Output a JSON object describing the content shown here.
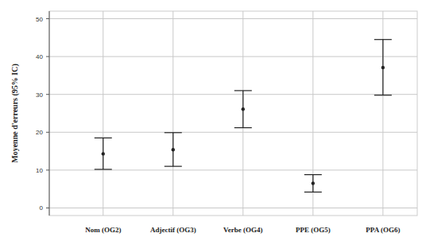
{
  "chart_data": {
    "type": "errorbar",
    "y_label": "Moyenne d'erreurs (95% IC)",
    "categories": [
      "Nom (OG2)",
      "Adjectif (OG3)",
      "Verbe (OG4)",
      "PPE (OG5)",
      "PPA (OG6)"
    ],
    "values": [
      14.3,
      15.4,
      26.1,
      6.5,
      37.1
    ],
    "ci_low": [
      10.2,
      11.0,
      21.2,
      4.2,
      29.8
    ],
    "ci_high": [
      18.5,
      19.9,
      31.0,
      8.8,
      44.5
    ],
    "color": "#222222",
    "ylim": [
      -2,
      52
    ],
    "yticks": [
      0,
      10,
      20,
      30,
      40,
      50
    ],
    "grid": true
  }
}
